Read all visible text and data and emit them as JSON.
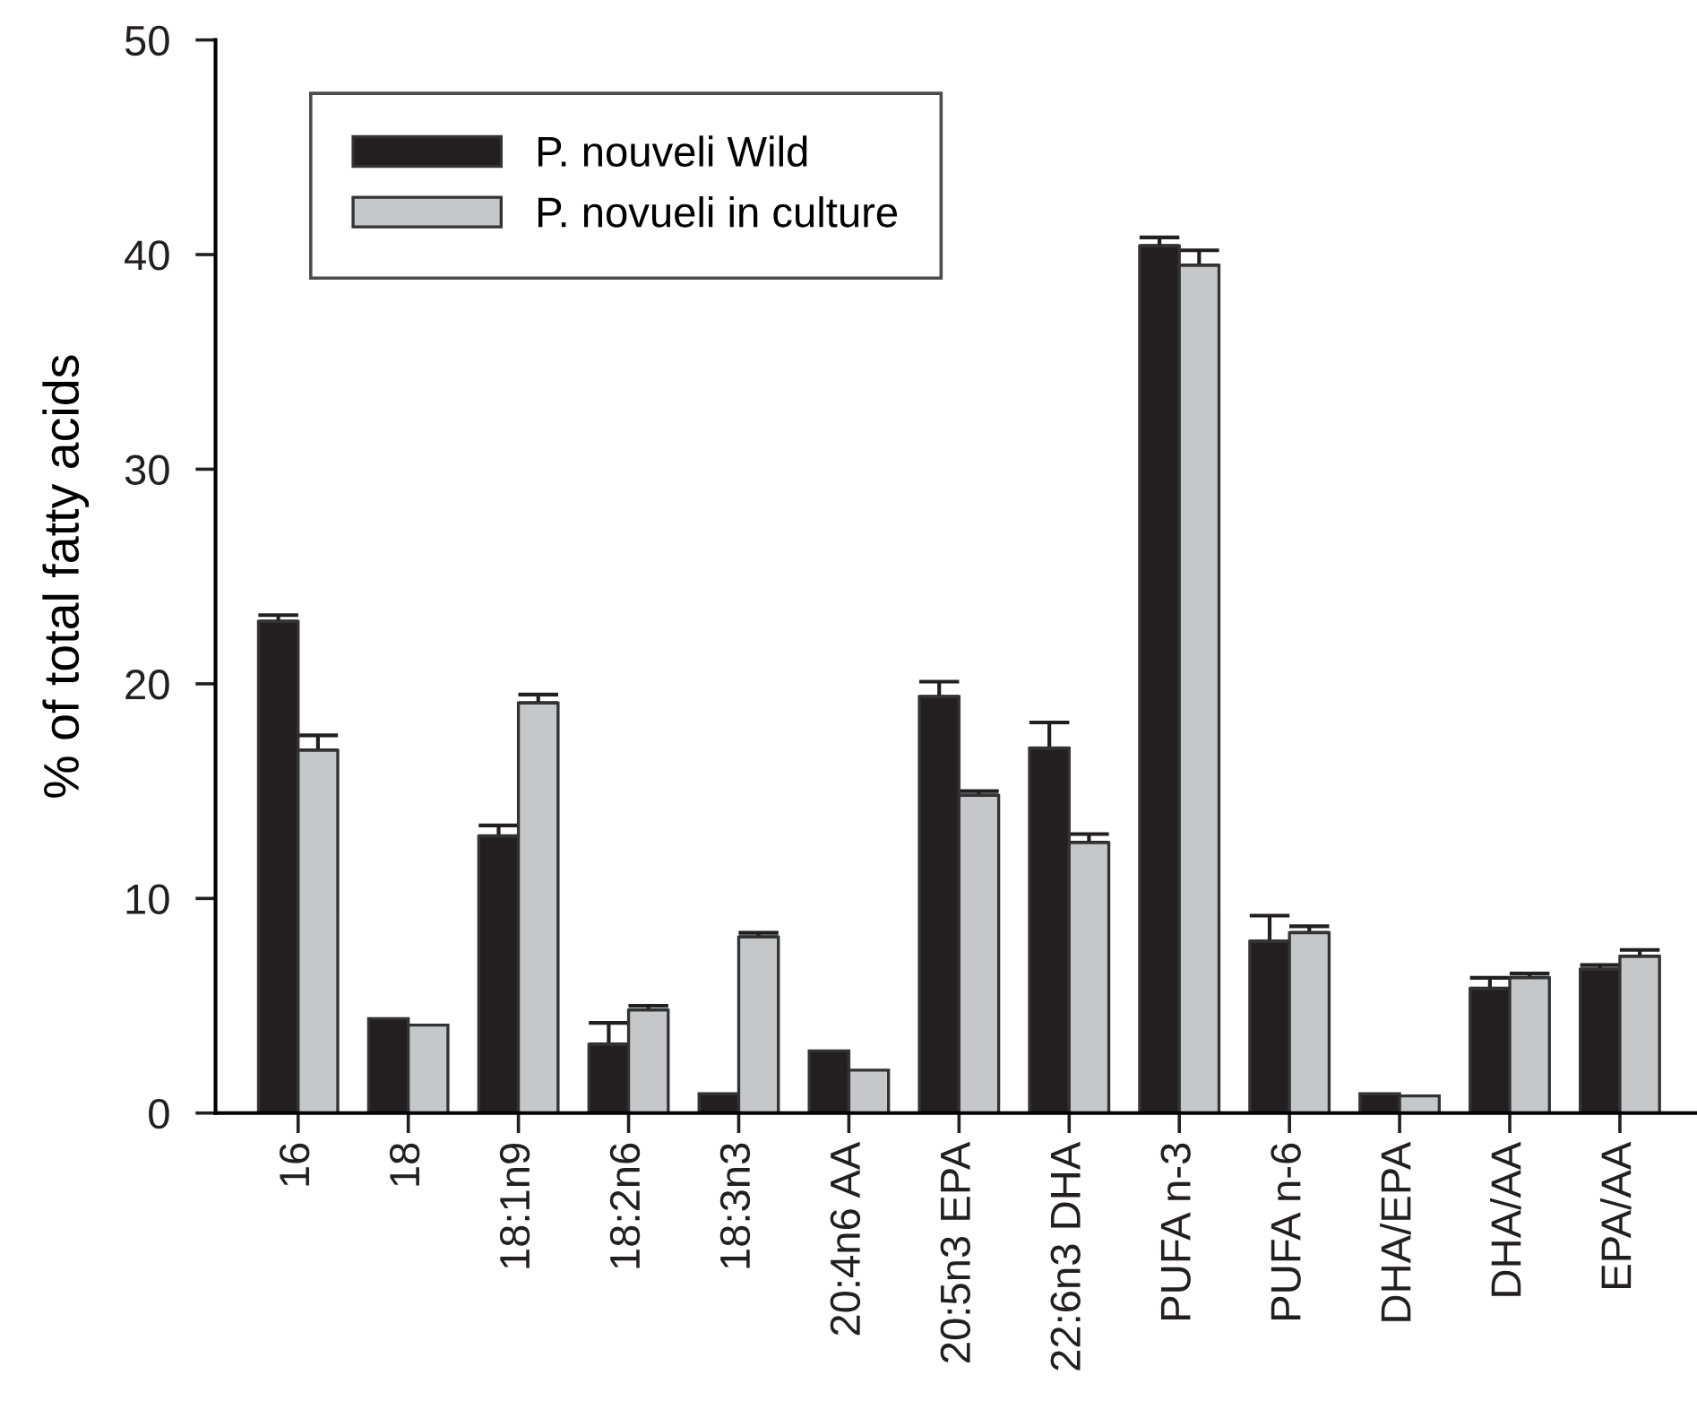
{
  "chart_data": {
    "type": "bar",
    "ylabel": "% of total fatty acids",
    "categories": [
      "16",
      "18",
      "18:1n9",
      "18:2n6",
      "18:3n3",
      "20:4n6 AA",
      "20:5n3 EPA",
      "22:6n3 DHA",
      "PUFA n-3",
      "PUFA n-6",
      "DHA/EPA",
      "DHA/AA",
      "EPA/AA"
    ],
    "series": [
      {
        "name": "P. nouveli Wild",
        "color": "#231f20",
        "values": [
          22.9,
          4.4,
          12.9,
          3.2,
          0.9,
          2.9,
          19.4,
          17.0,
          40.4,
          8.0,
          0.9,
          5.8,
          6.7
        ],
        "errors": [
          [
            22.9,
            23.2
          ],
          null,
          [
            12.9,
            13.4
          ],
          [
            3.2,
            4.2
          ],
          null,
          null,
          [
            19.4,
            20.1
          ],
          [
            17.0,
            18.2
          ],
          [
            40.4,
            40.8
          ],
          [
            8.0,
            9.2
          ],
          null,
          [
            5.8,
            6.3
          ],
          [
            6.7,
            6.9
          ]
        ]
      },
      {
        "name": "P. novueli in culture",
        "color": "#c6c7c9",
        "values": [
          16.9,
          4.1,
          19.1,
          4.8,
          8.2,
          2.0,
          14.8,
          12.6,
          39.5,
          8.4,
          0.8,
          6.3,
          7.3
        ],
        "errors": [
          [
            16.9,
            17.6
          ],
          null,
          [
            19.1,
            19.5
          ],
          [
            4.8,
            5.0
          ],
          [
            8.2,
            8.4
          ],
          null,
          [
            14.8,
            15.0
          ],
          [
            12.6,
            13.0
          ],
          [
            39.5,
            40.2
          ],
          [
            8.4,
            8.7
          ],
          null,
          [
            6.3,
            6.5
          ],
          [
            7.3,
            7.6
          ]
        ]
      }
    ],
    "ylim": [
      0,
      50
    ],
    "yticks": [
      0,
      10,
      20,
      30,
      40,
      50
    ],
    "legend": "top left"
  }
}
